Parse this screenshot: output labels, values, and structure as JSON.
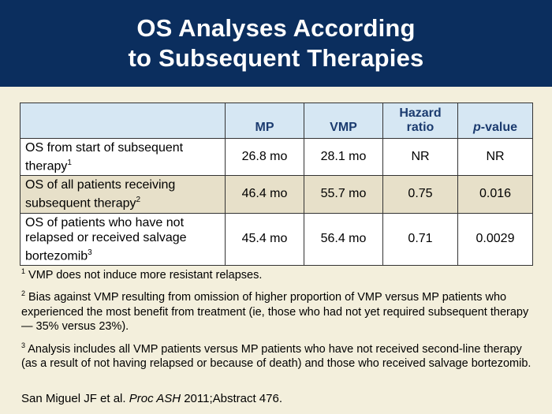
{
  "title": {
    "line1": "OS Analyses According",
    "line2": "to Subsequent Therapies"
  },
  "table": {
    "headers": [
      "",
      "MP",
      "VMP",
      "Hazard ratio",
      "p-value"
    ],
    "hazard_line1": "Hazard",
    "hazard_line2": "ratio",
    "pvalue_italic": "p",
    "pvalue_rest": "-value",
    "rows": [
      {
        "label": "OS from start of subsequent therapy",
        "label_line1": "OS from start of subsequent",
        "label_line2": "therapy",
        "sup": "1",
        "mp": "26.8 mo",
        "vmp": "28.1 mo",
        "hr": "NR",
        "p": "NR"
      },
      {
        "label": "OS of all patients receiving subsequent therapy",
        "label_line1": "OS of all patients receiving",
        "label_line2": "subsequent therapy",
        "sup": "2",
        "mp": "46.4 mo",
        "vmp": "55.7 mo",
        "hr": "0.75",
        "p": "0.016"
      },
      {
        "label": "OS of patients who have not relapsed or received salvage bortezomib",
        "label_line1": "OS of patients who have not",
        "label_line2": "relapsed or received salvage",
        "label_line3": "bortezomib",
        "sup": "3",
        "mp": "45.4 mo",
        "vmp": "56.4 mo",
        "hr": "0.71",
        "p": "0.0029"
      }
    ]
  },
  "footnotes": [
    {
      "num": "1",
      "text": "VMP does not induce more resistant relapses."
    },
    {
      "num": "2",
      "text": "Bias against VMP resulting from omission of higher proportion of VMP versus MP patients who experienced the most benefit from treatment (ie, those who had not yet required subsequent therapy — 35% versus 23%)."
    },
    {
      "num": "3",
      "text": "Analysis includes all VMP patients versus MP patients who have not received second-line therapy (as a result of not having relapsed or because of death) and those who received salvage bortezomib."
    }
  ],
  "citation": {
    "authors": "San Miguel JF et al. ",
    "journal": "Proc ASH",
    "rest": " 2011;Abstract 476."
  },
  "colors": {
    "header_bg": "#0b2e5e",
    "table_header_bg": "#d6e7f3",
    "alt_row_bg": "#e7e0c9",
    "slide_bg": "#f3efdc"
  }
}
